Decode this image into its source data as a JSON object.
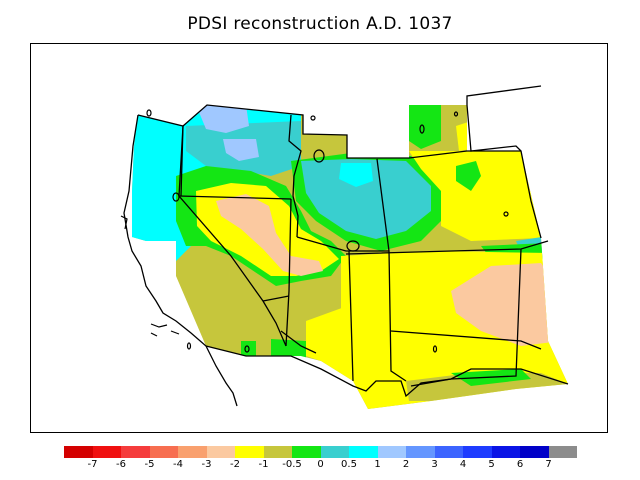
{
  "title": "PDSI reconstruction A.D. 1037",
  "colorbar": {
    "colors": [
      "#d40000",
      "#f01010",
      "#f53c3c",
      "#f76e50",
      "#f9a06e",
      "#fbc9a0",
      "#ffff00",
      "#c6c63c",
      "#14e614",
      "#39cfcf",
      "#00ffff",
      "#a0c8ff",
      "#6496ff",
      "#3c64ff",
      "#1e3cff",
      "#0a14e6",
      "#0000c8",
      "#8c8c8c"
    ],
    "labels": [
      "-7",
      "-6",
      "-5",
      "-4",
      "-3",
      "-2",
      "-1",
      "-0.5",
      "0",
      "0.5",
      "1",
      "2",
      "3",
      "4",
      "5",
      "6",
      "7"
    ]
  },
  "legend_colors": {
    "dry_light": "#fbc9a0",
    "dry_mid": "#ffff00",
    "near_normal": "#c6c63c",
    "wet_light": "#14e614",
    "wet_mid": "#39cfcf",
    "wet_high": "#00ffff",
    "very_wet": "#a0c8ff"
  }
}
